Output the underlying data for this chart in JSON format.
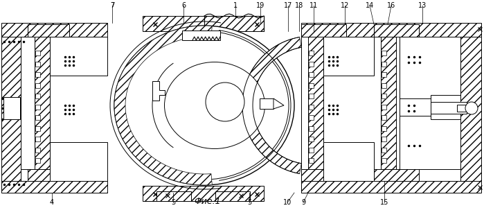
{
  "bg_color": "#ffffff",
  "lc": "#000000",
  "title": "Фие.1",
  "lw": 0.7,
  "lw2": 1.0
}
